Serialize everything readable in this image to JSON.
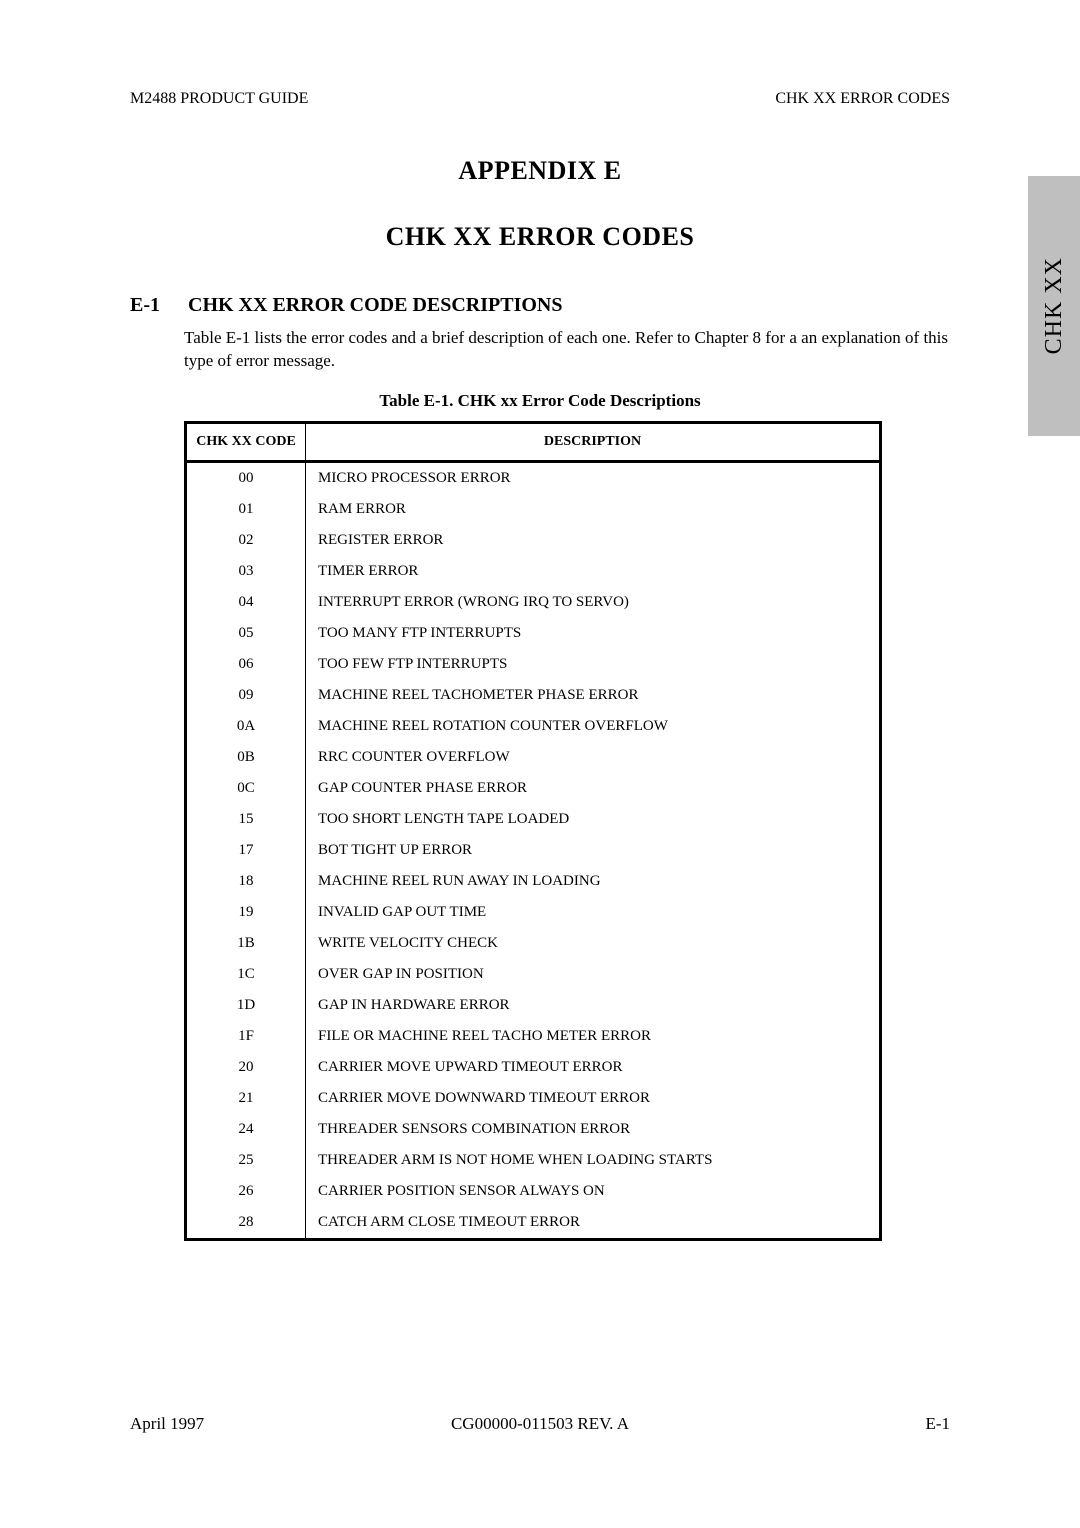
{
  "running_head": {
    "left": "M2488 PRODUCT GUIDE",
    "right": "CHK XX ERROR CODES"
  },
  "side_tab": "CHK XX",
  "titles": {
    "appendix": "APPENDIX E",
    "chapter": "CHK XX ERROR CODES"
  },
  "section": {
    "number": "E-1",
    "title": "CHK XX ERROR CODE DESCRIPTIONS",
    "intro": "Table E-1 lists the error codes and a brief description of each one.  Refer to Chapter 8 for a an explanation of this type of error message."
  },
  "table": {
    "caption": "Table E-1.   CHK xx Error Code Descriptions",
    "columns": {
      "code": "CHK XX CODE",
      "desc": "DESCRIPTION"
    },
    "rows": [
      {
        "code": "00",
        "desc": "MICRO PROCESSOR ERROR"
      },
      {
        "code": "01",
        "desc": "RAM ERROR"
      },
      {
        "code": "02",
        "desc": "REGISTER ERROR"
      },
      {
        "code": "03",
        "desc": "TIMER ERROR"
      },
      {
        "code": "04",
        "desc": "INTERRUPT ERROR (WRONG IRQ TO SERVO)"
      },
      {
        "code": "05",
        "desc": "TOO MANY FTP INTERRUPTS"
      },
      {
        "code": "06",
        "desc": "TOO FEW FTP INTERRUPTS"
      },
      {
        "code": "09",
        "desc": "MACHINE REEL TACHOMETER PHASE ERROR"
      },
      {
        "code": "0A",
        "desc": "MACHINE REEL ROTATION COUNTER OVERFLOW"
      },
      {
        "code": "0B",
        "desc": "RRC COUNTER OVERFLOW"
      },
      {
        "code": "0C",
        "desc": "GAP COUNTER PHASE ERROR"
      },
      {
        "code": "15",
        "desc": "TOO SHORT LENGTH TAPE LOADED"
      },
      {
        "code": "17",
        "desc": "BOT TIGHT UP ERROR"
      },
      {
        "code": "18",
        "desc": "MACHINE REEL RUN AWAY IN LOADING"
      },
      {
        "code": "19",
        "desc": "INVALID GAP OUT TIME"
      },
      {
        "code": "1B",
        "desc": "WRITE VELOCITY CHECK"
      },
      {
        "code": "1C",
        "desc": "OVER GAP IN POSITION"
      },
      {
        "code": "1D",
        "desc": "GAP IN HARDWARE ERROR"
      },
      {
        "code": "1F",
        "desc": "FILE OR MACHINE REEL TACHO METER ERROR"
      },
      {
        "code": "20",
        "desc": "CARRIER MOVE UPWARD TIMEOUT ERROR"
      },
      {
        "code": "21",
        "desc": "CARRIER MOVE DOWNWARD TIMEOUT ERROR"
      },
      {
        "code": "24",
        "desc": "THREADER SENSORS COMBINATION ERROR"
      },
      {
        "code": "25",
        "desc": "THREADER ARM IS NOT HOME WHEN LOADING STARTS"
      },
      {
        "code": "26",
        "desc": "CARRIER POSITION SENSOR ALWAYS ON"
      },
      {
        "code": "28",
        "desc": "CATCH ARM CLOSE TIMEOUT ERROR"
      }
    ]
  },
  "footer": {
    "left": "April 1997",
    "center": "CG00000-011503 REV. A",
    "right": "E-1"
  }
}
